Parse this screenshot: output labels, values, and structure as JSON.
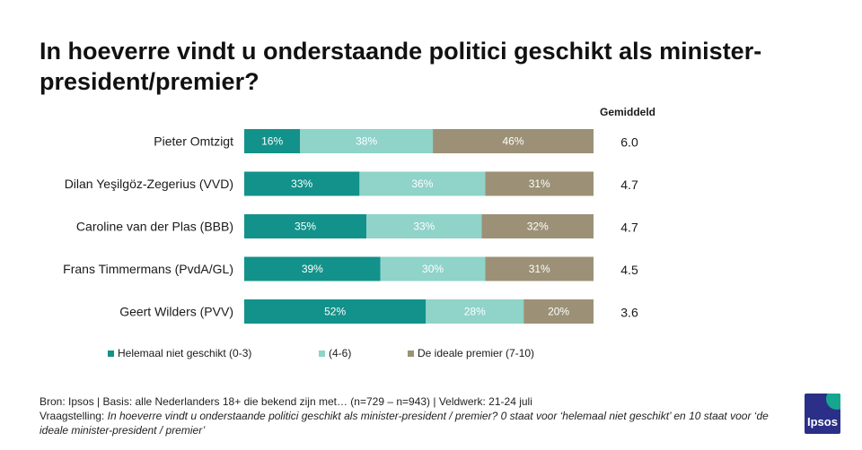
{
  "title": "In hoeverre vindt u onderstaande politici geschikt als minister-president/premier?",
  "avg_header": "Gemiddeld",
  "colors": {
    "low": "#12928a",
    "mid": "#8fd3c9",
    "high": "#9c9176"
  },
  "chart_data": {
    "type": "bar",
    "orientation": "horizontal-stacked-100",
    "categories": [
      "Pieter Omtzigt",
      "Dilan Yeşilgöz-Zegerius (VVD)",
      "Caroline van der Plas (BBB)",
      "Frans Timmermans (PvdA/GL)",
      "Geert Wilders (PVV)"
    ],
    "series": [
      {
        "name": "Helemaal niet geschikt (0-3)",
        "values": [
          16,
          33,
          35,
          39,
          52
        ]
      },
      {
        "name": "(4-6)",
        "values": [
          38,
          36,
          33,
          30,
          28
        ]
      },
      {
        "name": "De ideale premier (7-10)",
        "values": [
          46,
          31,
          32,
          31,
          20
        ]
      }
    ],
    "averages": [
      "6.0",
      "4.7",
      "4.7",
      "4.5",
      "3.6"
    ],
    "unit": "%",
    "xlim": [
      0,
      100
    ]
  },
  "footer": {
    "source": "Bron: Ipsos | Basis: alle Nederlanders  18+ die bekend zijn met… (n=729 – n=943) | Veldwerk:  21-24 juli",
    "question_label": "Vraagstelling: ",
    "question_text": "In hoeverre vindt u onderstaande  politici geschikt als minister-president  / premier? 0 staat voor ‘helemaal niet geschikt’ en 10 staat voor ‘de ideale minister-president  / premier’"
  },
  "logo_text": "Ipsos"
}
